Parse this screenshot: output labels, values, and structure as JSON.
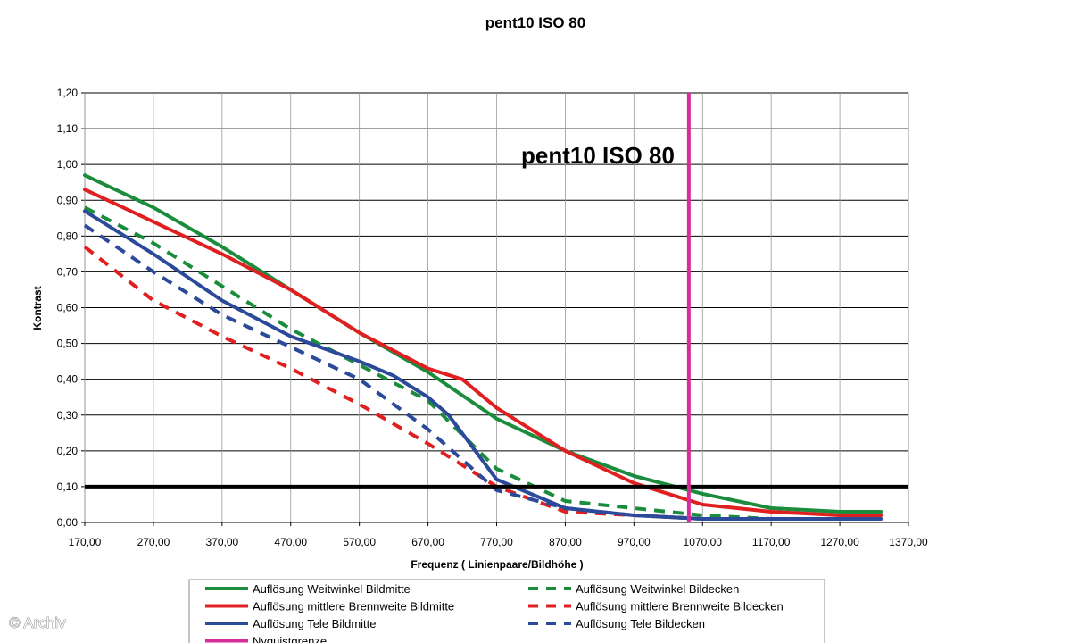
{
  "chart_data": {
    "type": "line",
    "title": "pent10   ISO 80",
    "inner_title": "pent10   ISO 80",
    "xlabel": "Frequenz ( Linienpaare/Bildhöhe )",
    "ylabel": "Kontrast",
    "xlim": [
      170,
      1370
    ],
    "ylim": [
      0,
      1.2
    ],
    "x_ticks": [
      "170,00",
      "270,00",
      "370,00",
      "470,00",
      "570,00",
      "670,00",
      "770,00",
      "870,00",
      "970,00",
      "1070,00",
      "1170,00",
      "1270,00",
      "1370,00"
    ],
    "y_ticks": [
      "0,00",
      "0,10",
      "0,20",
      "0,30",
      "0,40",
      "0,50",
      "0,60",
      "0,70",
      "0,80",
      "0,90",
      "1,00",
      "1,10",
      "1,20"
    ],
    "grid": true,
    "legend_position": "bottom",
    "reference_lines": [
      {
        "name": "threshold",
        "orientation": "horizontal",
        "value": 0.1,
        "color": "#000000"
      },
      {
        "name": "Nyquistgrenze",
        "orientation": "vertical",
        "value": 1050,
        "color": "#d62d9a"
      }
    ],
    "series": [
      {
        "name": "Auflösung Weitwinkel Bildmitte",
        "color": "#1a8c3c",
        "dash": false,
        "x": [
          170,
          270,
          370,
          470,
          570,
          670,
          770,
          870,
          970,
          1070,
          1170,
          1270,
          1330
        ],
        "y": [
          0.97,
          0.88,
          0.77,
          0.65,
          0.53,
          0.42,
          0.29,
          0.2,
          0.13,
          0.08,
          0.04,
          0.03,
          0.03
        ]
      },
      {
        "name": "Auflösung Weitwinkel Bildecken",
        "color": "#1a8c3c",
        "dash": true,
        "x": [
          170,
          270,
          370,
          470,
          570,
          670,
          770,
          870,
          970,
          1070,
          1170,
          1270,
          1330
        ],
        "y": [
          0.88,
          0.78,
          0.66,
          0.54,
          0.44,
          0.34,
          0.15,
          0.06,
          0.04,
          0.02,
          0.01,
          0.01,
          0.01
        ]
      },
      {
        "name": "Auflösung mittlere Brennweite Bildmitte",
        "color": "#e02020",
        "dash": false,
        "x": [
          170,
          270,
          370,
          470,
          570,
          620,
          670,
          720,
          770,
          870,
          970,
          1070,
          1170,
          1270,
          1330
        ],
        "y": [
          0.93,
          0.84,
          0.75,
          0.65,
          0.53,
          0.48,
          0.43,
          0.4,
          0.32,
          0.2,
          0.11,
          0.05,
          0.03,
          0.02,
          0.02
        ]
      },
      {
        "name": "Auflösung mittlere Brennweite Bildecken",
        "color": "#e02020",
        "dash": true,
        "x": [
          170,
          270,
          370,
          470,
          570,
          670,
          770,
          870,
          970,
          1070,
          1170,
          1270,
          1330
        ],
        "y": [
          0.77,
          0.62,
          0.52,
          0.43,
          0.33,
          0.22,
          0.1,
          0.03,
          0.02,
          0.01,
          0.01,
          0.01,
          0.01
        ]
      },
      {
        "name": "Auflösung Tele Bildmitte",
        "color": "#2c4a9a",
        "dash": false,
        "x": [
          170,
          270,
          370,
          470,
          570,
          620,
          670,
          700,
          770,
          870,
          970,
          1070,
          1170,
          1270,
          1330
        ],
        "y": [
          0.87,
          0.75,
          0.62,
          0.52,
          0.45,
          0.41,
          0.35,
          0.3,
          0.12,
          0.04,
          0.02,
          0.01,
          0.01,
          0.01,
          0.01
        ]
      },
      {
        "name": "Auflösung Tele Bildecken",
        "color": "#2c4a9a",
        "dash": true,
        "x": [
          170,
          270,
          370,
          470,
          570,
          670,
          770,
          870,
          970,
          1070,
          1170,
          1270,
          1330
        ],
        "y": [
          0.83,
          0.7,
          0.58,
          0.49,
          0.4,
          0.26,
          0.09,
          0.04,
          0.02,
          0.01,
          0.01,
          0.01,
          0.01
        ]
      }
    ],
    "legend": [
      {
        "label": "Auflösung Weitwinkel Bildmitte",
        "color": "#1a8c3c",
        "dash": false
      },
      {
        "label": "Auflösung Weitwinkel Bildecken",
        "color": "#1a8c3c",
        "dash": true
      },
      {
        "label": "Auflösung mittlere Brennweite Bildmitte",
        "color": "#e02020",
        "dash": false
      },
      {
        "label": "Auflösung mittlere Brennweite Bildecken",
        "color": "#e02020",
        "dash": true
      },
      {
        "label": "Auflösung Tele Bildmitte",
        "color": "#2c4a9a",
        "dash": false
      },
      {
        "label": "Auflösung Tele Bildecken",
        "color": "#2c4a9a",
        "dash": true
      },
      {
        "label": "Nyquistgrenze",
        "color": "#d62d9a",
        "dash": false
      }
    ]
  },
  "watermark": "© Archiv"
}
